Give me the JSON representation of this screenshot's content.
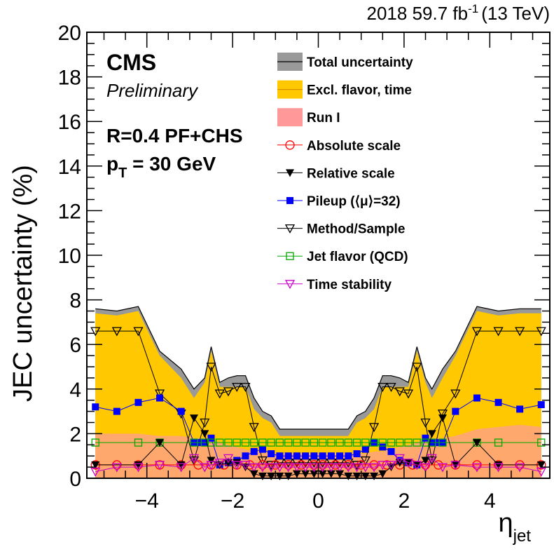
{
  "header": {
    "lumi_text": "2018 59.7 fb",
    "lumi_sup": "-1",
    "energy_text": "(13 TeV)"
  },
  "labels": {
    "cms": "CMS",
    "preliminary": "Preliminary",
    "jet_def": "R=0.4 PF+CHS",
    "pt_p": "p",
    "pt_sub": "T",
    "pt_value": " = 30 GeV"
  },
  "chart_data": {
    "type": "area",
    "ylabel": "JEC uncertainty (%)",
    "xlabel_main": "η",
    "xlabel_sub": "jet",
    "xlim": [
      -5.4,
      5.4
    ],
    "ylim": [
      0,
      20
    ],
    "xticks": [
      -4,
      -2,
      0,
      2,
      4
    ],
    "xtick_labels": [
      "−4",
      "−2",
      "0",
      "2",
      "4"
    ],
    "yticks": [
      0,
      2,
      4,
      6,
      8,
      10,
      12,
      14,
      16,
      18,
      20
    ],
    "grid": false,
    "legend_position": "top-right",
    "colors": {
      "total": "#999999",
      "excl": "#FFC800",
      "run1": "#FF9999",
      "overlap": "#FFA86E",
      "absolute": "#FF0000",
      "relative": "#000000",
      "pileup": "#0000FF",
      "method": "#000000",
      "flavor": "#00AA00",
      "time": "#CC00CC"
    },
    "legend": [
      {
        "key": "total",
        "label": "Total uncertainty",
        "style": "fill-line"
      },
      {
        "key": "excl",
        "label": "Excl. flavor, time",
        "style": "fill-line"
      },
      {
        "key": "run1",
        "label": "Run I",
        "style": "fill"
      },
      {
        "key": "absolute",
        "label": "Absolute scale",
        "style": "marker",
        "marker": "circle-open"
      },
      {
        "key": "relative",
        "label": "Relative scale",
        "style": "marker",
        "marker": "tri-down-filled"
      },
      {
        "key": "pileup",
        "label": "Pileup (⟨μ⟩=32)",
        "style": "marker",
        "marker": "square-filled"
      },
      {
        "key": "method",
        "label": "Method/Sample",
        "style": "marker",
        "marker": "tri-down-open"
      },
      {
        "key": "flavor",
        "label": "Jet flavor (QCD)",
        "style": "marker",
        "marker": "square-open"
      },
      {
        "key": "time",
        "label": "Time stability",
        "style": "marker",
        "marker": "tri-down-open"
      }
    ],
    "bands": {
      "eta": [
        -5.2,
        -4.7,
        -4.2,
        -3.7,
        -3.2,
        -2.9,
        -2.65,
        -2.5,
        -2.3,
        -2.1,
        -1.9,
        -1.7,
        -1.5,
        -1.3,
        -1.1,
        -0.9,
        -0.7,
        -0.5,
        -0.3,
        -0.1,
        0.1,
        0.3,
        0.5,
        0.7,
        0.9,
        1.1,
        1.3,
        1.5,
        1.7,
        1.9,
        2.1,
        2.3,
        2.5,
        2.65,
        2.9,
        3.2,
        3.7,
        4.2,
        4.7,
        5.2
      ],
      "total": [
        7.6,
        7.5,
        7.7,
        5.7,
        4.9,
        4.0,
        4.5,
        5.9,
        4.3,
        4.5,
        4.6,
        4.6,
        3.6,
        3.0,
        2.8,
        2.2,
        2.2,
        2.2,
        2.2,
        2.2,
        2.2,
        2.2,
        2.2,
        2.2,
        2.8,
        3.0,
        3.6,
        4.6,
        4.6,
        4.5,
        4.3,
        5.9,
        4.5,
        4.0,
        4.9,
        5.7,
        7.7,
        7.5,
        7.6,
        7.6
      ],
      "excl": [
        7.4,
        7.3,
        7.5,
        5.5,
        4.5,
        3.6,
        4.3,
        5.7,
        4.1,
        4.1,
        4.1,
        4.1,
        3.1,
        2.7,
        2.5,
        1.9,
        1.9,
        1.9,
        1.9,
        1.9,
        1.9,
        1.9,
        1.9,
        1.9,
        2.5,
        2.7,
        3.1,
        4.1,
        4.1,
        4.1,
        4.1,
        5.7,
        4.3,
        3.6,
        4.5,
        5.5,
        7.5,
        7.3,
        7.4,
        7.4
      ],
      "run1": [
        2.0,
        2.0,
        2.0,
        1.9,
        1.9,
        1.8,
        1.8,
        1.8,
        1.6,
        1.5,
        1.4,
        1.3,
        1.2,
        1.2,
        1.1,
        1.1,
        1.1,
        1.1,
        1.1,
        1.1,
        1.1,
        1.1,
        1.1,
        1.1,
        1.1,
        1.1,
        1.2,
        1.2,
        1.3,
        1.4,
        1.5,
        1.6,
        1.8,
        1.8,
        1.8,
        1.9,
        2.2,
        2.3,
        2.4,
        2.3
      ]
    },
    "series": [
      {
        "name": "Method/Sample",
        "key": "method",
        "marker": "tri-down-open",
        "x": [
          -5.2,
          -4.7,
          -4.2,
          -3.7,
          -3.2,
          -2.9,
          -2.65,
          -2.5,
          -2.3,
          -2.1,
          -1.9,
          -1.7,
          -1.5,
          -1.3,
          -1.1,
          -0.9,
          -0.7,
          -0.5,
          -0.3,
          -0.1,
          0.1,
          0.3,
          0.5,
          0.7,
          0.9,
          1.1,
          1.3,
          1.5,
          1.7,
          1.9,
          2.1,
          2.3,
          2.5,
          2.65,
          2.9,
          3.2,
          3.7,
          4.2,
          4.7,
          5.2
        ],
        "y": [
          6.6,
          6.6,
          6.6,
          3.8,
          2.9,
          0.8,
          2.5,
          5.0,
          3.8,
          3.9,
          4.1,
          4.1,
          2.3,
          0.8,
          0.6,
          0.7,
          0.7,
          0.7,
          0.7,
          0.7,
          0.7,
          0.7,
          0.7,
          0.7,
          0.6,
          0.8,
          2.3,
          4.1,
          4.1,
          3.9,
          3.8,
          5.0,
          2.5,
          0.8,
          2.9,
          3.8,
          6.6,
          6.6,
          6.6,
          6.6
        ]
      },
      {
        "name": "Pileup (⟨μ⟩=32)",
        "key": "pileup",
        "marker": "square-filled",
        "x": [
          -5.2,
          -4.7,
          -4.2,
          -3.7,
          -3.2,
          -2.9,
          -2.8,
          -2.65,
          -2.5,
          -2.3,
          -2.1,
          -1.9,
          -1.7,
          -1.5,
          -1.3,
          -1.1,
          -0.9,
          -0.7,
          -0.5,
          -0.3,
          -0.1,
          0.1,
          0.3,
          0.5,
          0.7,
          0.9,
          1.1,
          1.3,
          1.5,
          1.7,
          1.9,
          2.1,
          2.3,
          2.5,
          2.65,
          2.8,
          2.9,
          3.2,
          3.7,
          4.2,
          4.7,
          5.2
        ],
        "y": [
          3.2,
          3.0,
          3.4,
          3.6,
          3.0,
          1.6,
          1.6,
          1.6,
          1.8,
          0.6,
          0.7,
          0.8,
          1.0,
          1.2,
          1.3,
          1.1,
          1.0,
          1.0,
          1.0,
          1.0,
          1.0,
          1.0,
          1.0,
          1.0,
          1.0,
          1.1,
          1.3,
          1.6,
          1.4,
          1.2,
          0.8,
          0.7,
          0.6,
          1.8,
          1.6,
          1.6,
          1.6,
          3.0,
          3.6,
          3.4,
          3.1,
          3.3
        ]
      },
      {
        "name": "Jet flavor (QCD)",
        "key": "flavor",
        "marker": "square-open",
        "x": [
          -5.2,
          -4.2,
          -3.7,
          -2.9,
          -2.65,
          -2.5,
          -2.3,
          -2.1,
          -1.9,
          -1.7,
          -1.5,
          -1.3,
          -1.1,
          -0.9,
          -0.7,
          -0.5,
          -0.3,
          -0.1,
          0.1,
          0.3,
          0.5,
          0.7,
          0.9,
          1.1,
          1.3,
          1.5,
          1.7,
          1.9,
          2.1,
          2.3,
          2.5,
          2.65,
          2.9,
          3.7,
          4.2,
          5.2
        ],
        "y": [
          1.6,
          1.6,
          1.6,
          1.6,
          1.6,
          1.6,
          1.6,
          1.6,
          1.6,
          1.6,
          1.6,
          1.6,
          1.6,
          1.6,
          1.6,
          1.6,
          1.6,
          1.6,
          1.6,
          1.6,
          1.6,
          1.6,
          1.6,
          1.6,
          1.6,
          1.6,
          1.6,
          1.6,
          1.6,
          1.6,
          1.6,
          1.6,
          1.6,
          1.6,
          1.6,
          1.6
        ]
      },
      {
        "name": "Absolute scale",
        "key": "absolute",
        "marker": "circle-open",
        "x": [
          -5.2,
          -4.7,
          -4.2,
          -3.7,
          -3.2,
          -2.8,
          -2.5,
          -2.2,
          -1.9,
          -1.6,
          -1.3,
          -1.0,
          -0.7,
          -0.4,
          -0.1,
          0.1,
          0.4,
          0.7,
          1.0,
          1.3,
          1.6,
          1.9,
          2.2,
          2.5,
          2.8,
          3.2,
          3.7,
          4.2,
          4.7,
          5.2
        ],
        "y": [
          0.6,
          0.6,
          0.6,
          0.6,
          0.6,
          0.6,
          0.6,
          0.6,
          0.6,
          0.6,
          0.6,
          0.6,
          0.6,
          0.6,
          0.6,
          0.6,
          0.6,
          0.6,
          0.6,
          0.6,
          0.6,
          0.6,
          0.6,
          0.6,
          0.6,
          0.6,
          0.6,
          0.6,
          0.6,
          0.6
        ]
      },
      {
        "name": "Relative scale",
        "key": "relative",
        "marker": "tri-down-filled",
        "x": [
          -5.2,
          -4.2,
          -3.7,
          -3.2,
          -2.9,
          -2.65,
          -2.5,
          -2.3,
          -2.1,
          -1.9,
          -1.7,
          -1.5,
          -1.3,
          -1.1,
          -0.9,
          -0.7,
          -0.5,
          -0.3,
          -0.1,
          0.1,
          0.3,
          0.5,
          0.7,
          0.9,
          1.1,
          1.3,
          1.5,
          1.7,
          1.9,
          2.1,
          2.3,
          2.5,
          2.65,
          2.9,
          3.2,
          3.7,
          4.2,
          5.2
        ],
        "y": [
          0.6,
          0.6,
          1.6,
          0.6,
          2.7,
          2.0,
          0.8,
          0.6,
          0.7,
          0.7,
          0.5,
          0.2,
          0.1,
          0.1,
          0.1,
          0.1,
          0.2,
          0.2,
          0.2,
          0.2,
          0.2,
          0.2,
          0.1,
          0.1,
          0.1,
          0.1,
          0.2,
          0.5,
          0.7,
          0.7,
          0.6,
          0.8,
          2.0,
          2.7,
          0.6,
          1.6,
          0.6,
          0.6
        ]
      },
      {
        "name": "Time stability",
        "key": "time",
        "marker": "tri-down-open",
        "x": [
          -5.2,
          -4.7,
          -4.2,
          -3.7,
          -3.2,
          -2.9,
          -2.65,
          -2.5,
          -2.3,
          -2.1,
          -1.9,
          -1.7,
          -1.5,
          -1.3,
          -1.1,
          -0.9,
          -0.7,
          -0.5,
          -0.3,
          -0.1,
          0.1,
          0.3,
          0.5,
          0.7,
          0.9,
          1.1,
          1.3,
          1.5,
          1.7,
          1.9,
          2.1,
          2.3,
          2.5,
          2.65,
          2.9,
          3.2,
          3.7,
          4.2,
          4.7,
          5.2
        ],
        "y": [
          0.3,
          0.5,
          0.5,
          0.6,
          0.5,
          0.9,
          0.5,
          0.6,
          0.7,
          0.9,
          0.6,
          0.6,
          0.5,
          0.5,
          0.5,
          0.5,
          0.5,
          0.5,
          0.5,
          0.5,
          0.5,
          0.5,
          0.5,
          0.5,
          0.5,
          0.5,
          0.5,
          0.6,
          0.6,
          0.9,
          0.7,
          0.6,
          0.5,
          0.9,
          0.5,
          0.6,
          0.5,
          0.5,
          0.5,
          0.3
        ]
      }
    ]
  }
}
